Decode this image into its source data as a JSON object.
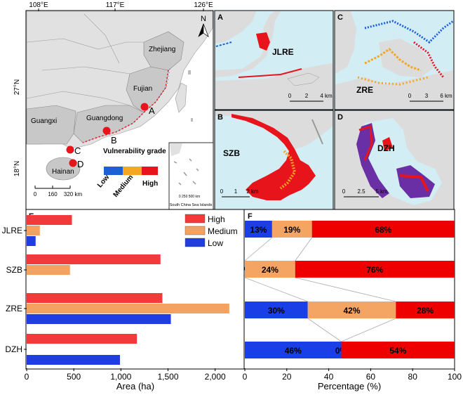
{
  "map_panel": {
    "lon_ticks": [
      "108°E",
      "117°E",
      "126°E"
    ],
    "lat_ticks": [
      "27°N",
      "18°N"
    ],
    "north_arrow": "N",
    "provinces": [
      "Zhejiang",
      "Fujian",
      "Guangdong",
      "Guangxi",
      "Hainan"
    ],
    "site_labels": [
      "A",
      "B",
      "C",
      "D"
    ],
    "legend_title": "Vulnerability grade",
    "legend_levels": [
      "Low",
      "Medium",
      "High"
    ],
    "legend_colors": [
      "#1f5fd6",
      "#f5a623",
      "#e8141b"
    ],
    "scalebar_ticks": [
      "0",
      "160",
      "320 km"
    ],
    "inset_caption": "South China Sea Islands",
    "inset_scale": "0 250 500 km"
  },
  "sub_maps": [
    {
      "letter": "A",
      "name": "JLRE",
      "scale_ticks": [
        "0",
        "2",
        "4 km"
      ]
    },
    {
      "letter": "C",
      "name": "ZRE",
      "scale_ticks": [
        "0",
        "3",
        "6 km"
      ]
    },
    {
      "letter": "B",
      "name": "SZB",
      "scale_ticks": [
        "0",
        "1",
        "2 km"
      ]
    },
    {
      "letter": "D",
      "name": "DZH",
      "scale_ticks": [
        "0",
        "2.5",
        "5 km"
      ]
    }
  ],
  "colors": {
    "high": "#f23a3a",
    "medium": "#f4a261",
    "low": "#1f3de0",
    "bar_high": "#ee0000",
    "bar_low": "#1a3fe6",
    "bar_mid": "#f4a463"
  },
  "chart_data": [
    {
      "panel": "E",
      "type": "bar",
      "orientation": "horizontal",
      "categories": [
        "JLRE",
        "SZB",
        "ZRE",
        "DZH"
      ],
      "series": [
        {
          "name": "High",
          "values": [
            480,
            1420,
            1440,
            1170
          ]
        },
        {
          "name": "Medium",
          "values": [
            140,
            460,
            2150,
            0
          ]
        },
        {
          "name": "Low",
          "values": [
            95,
            0,
            1530,
            990
          ]
        }
      ],
      "xlabel": "Area (ha)",
      "xlim": [
        0,
        2300
      ],
      "xticks": [
        "0",
        "500",
        "1,000",
        "1,500",
        "2,000"
      ],
      "legend_position": "top-right"
    },
    {
      "panel": "F",
      "type": "bar",
      "orientation": "horizontal-stacked",
      "categories": [
        "JLRE",
        "SZB",
        "ZRE",
        "DZH"
      ],
      "series": [
        {
          "name": "Low",
          "values": [
            13,
            0,
            30,
            46
          ]
        },
        {
          "name": "Medium",
          "values": [
            19,
            24,
            42,
            0
          ]
        },
        {
          "name": "High",
          "values": [
            68,
            76,
            28,
            54
          ]
        }
      ],
      "labels": [
        [
          "13%",
          "19%",
          "68%"
        ],
        [
          "%",
          "24%",
          "76%"
        ],
        [
          "30%",
          "42%",
          "28%"
        ],
        [
          "46%",
          "0%",
          "54%"
        ]
      ],
      "xlabel": "Percentage (%)",
      "xlim": [
        0,
        100
      ],
      "xticks": [
        "0",
        "20",
        "40",
        "60",
        "80",
        "100"
      ]
    }
  ]
}
